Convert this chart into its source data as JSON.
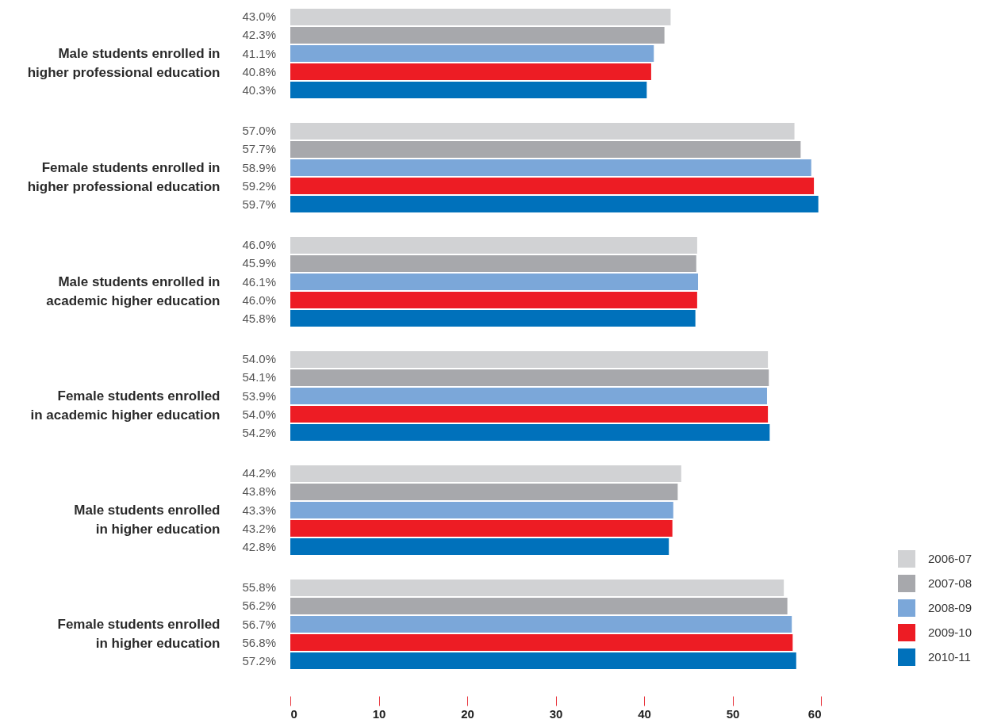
{
  "chart_data": {
    "type": "bar",
    "orientation": "horizontal",
    "categories": [
      "Male students enrolled in\nhigher professional education",
      "Female students enrolled in\nhigher professional education",
      "Male students enrolled in\nacademic higher education",
      "Female students enrolled\nin academic higher education",
      "Male students enrolled\nin higher education",
      "Female students enrolled\nin higher education"
    ],
    "series": [
      {
        "name": "2006-07",
        "color": "#d1d2d4",
        "values": [
          43.0,
          57.0,
          46.0,
          54.0,
          44.2,
          55.8
        ],
        "value_labels": [
          "43.0%",
          "57.0%",
          "46.0%",
          "54.0%",
          "44.2%",
          "55.8%"
        ]
      },
      {
        "name": "2007-08",
        "color": "#a7a8ac",
        "values": [
          42.3,
          57.7,
          45.9,
          54.1,
          43.8,
          56.2
        ],
        "value_labels": [
          "42.3%",
          "57.7%",
          "45.9%",
          "54.1%",
          "43.8%",
          "56.2%"
        ]
      },
      {
        "name": "2008-09",
        "color": "#7ba7d9",
        "values": [
          41.1,
          58.9,
          46.1,
          53.9,
          43.3,
          56.7
        ],
        "value_labels": [
          "41.1%",
          "58.9%",
          "46.1%",
          "53.9%",
          "43.3%",
          "56.7%"
        ]
      },
      {
        "name": "2009-10",
        "color": "#ed1c24",
        "values": [
          40.8,
          59.2,
          46.0,
          54.0,
          43.2,
          56.8
        ],
        "value_labels": [
          "40.8%",
          "59.2%",
          "46.0%",
          "54.0%",
          "43.2%",
          "56.8%"
        ]
      },
      {
        "name": "2010-11",
        "color": "#0071bb",
        "values": [
          40.3,
          59.7,
          45.8,
          54.2,
          42.8,
          57.2
        ],
        "value_labels": [
          "40.3%",
          "59.7%",
          "45.8%",
          "54.2%",
          "42.8%",
          "57.2%"
        ]
      }
    ],
    "xlim": [
      0,
      60
    ],
    "xticks": [
      0,
      10,
      20,
      30,
      40,
      50,
      60
    ],
    "grid": false,
    "legend": "bottom right"
  }
}
